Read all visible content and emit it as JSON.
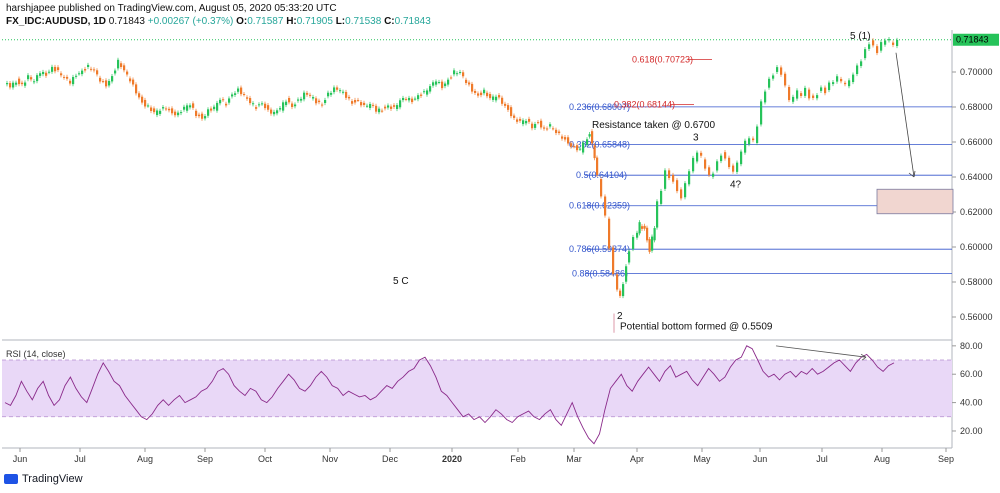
{
  "header": {
    "publisher": "harshjapee published on TradingView.com, August 05, 2020 05:33:20 UTC",
    "symbol": "FX_IDC:AUDUSD, 1D",
    "last": "0.71843",
    "change": "+0.00267 (+0.37%)",
    "open_label": "O:",
    "open": "0.71587",
    "high_label": "H:",
    "high": "0.71905",
    "low_label": "L:",
    "low": "0.71538",
    "close_label": "C:",
    "close": "0.71843"
  },
  "footer": {
    "brand": "TradingView"
  },
  "colors": {
    "up": "#26c35a",
    "down": "#ef7a2a",
    "fib": "#3355cc",
    "fib_red": "#d42a2a",
    "rsi": "#8a2a8a",
    "rsi_band": "#e9d8f7",
    "price_line": "#26c35a"
  },
  "chart_data": [
    {
      "type": "candlestick",
      "title": "",
      "yticks": [
        "0.56000",
        "0.58000",
        "0.60000",
        "0.62000",
        "0.64000",
        "0.66000",
        "0.68000",
        "0.70000"
      ],
      "ylim": [
        0.548,
        0.724
      ],
      "last_price_label": "0.71843",
      "xticks": [
        "Jun",
        "Jul",
        "Aug",
        "Sep",
        "Oct",
        "Nov",
        "Dec",
        "2020",
        "Feb",
        "Mar",
        "Apr",
        "May",
        "Jun",
        "Jul",
        "Aug",
        "Sep"
      ],
      "close_path": [
        [
          0,
          0.693
        ],
        [
          6,
          0.692
        ],
        [
          12,
          0.695
        ],
        [
          18,
          0.693
        ],
        [
          24,
          0.697
        ],
        [
          30,
          0.694
        ],
        [
          36,
          0.7
        ],
        [
          42,
          0.699
        ],
        [
          48,
          0.703
        ],
        [
          54,
          0.7
        ],
        [
          60,
          0.696
        ],
        [
          66,
          0.694
        ],
        [
          72,
          0.699
        ],
        [
          78,
          0.701
        ],
        [
          84,
          0.703
        ],
        [
          90,
          0.7
        ],
        [
          96,
          0.695
        ],
        [
          102,
          0.693
        ],
        [
          108,
          0.698
        ],
        [
          114,
          0.706
        ],
        [
          120,
          0.7
        ],
        [
          126,
          0.695
        ],
        [
          132,
          0.689
        ],
        [
          138,
          0.683
        ],
        [
          144,
          0.68
        ],
        [
          150,
          0.676
        ],
        [
          156,
          0.678
        ],
        [
          162,
          0.68
        ],
        [
          168,
          0.677
        ],
        [
          174,
          0.676
        ],
        [
          180,
          0.679
        ],
        [
          186,
          0.681
        ],
        [
          192,
          0.676
        ],
        [
          198,
          0.674
        ],
        [
          204,
          0.678
        ],
        [
          210,
          0.679
        ],
        [
          216,
          0.684
        ],
        [
          222,
          0.682
        ],
        [
          228,
          0.688
        ],
        [
          234,
          0.69
        ],
        [
          240,
          0.686
        ],
        [
          246,
          0.682
        ],
        [
          252,
          0.68
        ],
        [
          258,
          0.683
        ],
        [
          264,
          0.678
        ],
        [
          270,
          0.676
        ],
        [
          276,
          0.679
        ],
        [
          282,
          0.684
        ],
        [
          288,
          0.681
        ],
        [
          294,
          0.684
        ],
        [
          300,
          0.687
        ],
        [
          306,
          0.686
        ],
        [
          312,
          0.683
        ],
        [
          318,
          0.682
        ],
        [
          324,
          0.688
        ],
        [
          330,
          0.69
        ],
        [
          336,
          0.689
        ],
        [
          342,
          0.686
        ],
        [
          348,
          0.683
        ],
        [
          354,
          0.684
        ],
        [
          360,
          0.68
        ],
        [
          366,
          0.681
        ],
        [
          372,
          0.678
        ],
        [
          378,
          0.679
        ],
        [
          384,
          0.681
        ],
        [
          390,
          0.679
        ],
        [
          396,
          0.683
        ],
        [
          402,
          0.685
        ],
        [
          408,
          0.684
        ],
        [
          414,
          0.687
        ],
        [
          420,
          0.688
        ],
        [
          426,
          0.691
        ],
        [
          432,
          0.695
        ],
        [
          438,
          0.692
        ],
        [
          444,
          0.696
        ],
        [
          450,
          0.7
        ],
        [
          456,
          0.699
        ],
        [
          462,
          0.694
        ],
        [
          468,
          0.69
        ],
        [
          474,
          0.687
        ],
        [
          480,
          0.689
        ],
        [
          486,
          0.684
        ],
        [
          492,
          0.686
        ],
        [
          498,
          0.683
        ],
        [
          504,
          0.679
        ],
        [
          510,
          0.673
        ],
        [
          516,
          0.671
        ],
        [
          522,
          0.672
        ],
        [
          528,
          0.669
        ],
        [
          534,
          0.672
        ],
        [
          540,
          0.667
        ],
        [
          546,
          0.669
        ],
        [
          552,
          0.665
        ],
        [
          558,
          0.663
        ],
        [
          564,
          0.66
        ],
        [
          570,
          0.657
        ],
        [
          576,
          0.655
        ],
        [
          580,
          0.659
        ],
        [
          585,
          0.665
        ],
        [
          590,
          0.652
        ],
        [
          594,
          0.64
        ],
        [
          598,
          0.63
        ],
        [
          602,
          0.617
        ],
        [
          606,
          0.6
        ],
        [
          610,
          0.584
        ],
        [
          613,
          0.576
        ],
        [
          616,
          0.573
        ],
        [
          619,
          0.58
        ],
        [
          622,
          0.59
        ],
        [
          626,
          0.598
        ],
        [
          630,
          0.605
        ],
        [
          635,
          0.613
        ],
        [
          640,
          0.61
        ],
        [
          645,
          0.598
        ],
        [
          650,
          0.612
        ],
        [
          654,
          0.625
        ],
        [
          658,
          0.633
        ],
        [
          662,
          0.643
        ],
        [
          666,
          0.64
        ],
        [
          670,
          0.637
        ],
        [
          674,
          0.632
        ],
        [
          678,
          0.628
        ],
        [
          682,
          0.636
        ],
        [
          686,
          0.644
        ],
        [
          690,
          0.65
        ],
        [
          694,
          0.655
        ],
        [
          698,
          0.651
        ],
        [
          702,
          0.646
        ],
        [
          706,
          0.64
        ],
        [
          710,
          0.643
        ],
        [
          714,
          0.648
        ],
        [
          718,
          0.653
        ],
        [
          722,
          0.65
        ],
        [
          726,
          0.646
        ],
        [
          730,
          0.643
        ],
        [
          734,
          0.648
        ],
        [
          738,
          0.655
        ],
        [
          742,
          0.66
        ],
        [
          746,
          0.663
        ],
        [
          750,
          0.66
        ],
        [
          754,
          0.67
        ],
        [
          758,
          0.682
        ],
        [
          762,
          0.69
        ],
        [
          766,
          0.695
        ],
        [
          770,
          0.699
        ],
        [
          774,
          0.702
        ],
        [
          778,
          0.699
        ],
        [
          782,
          0.692
        ],
        [
          786,
          0.684
        ],
        [
          790,
          0.686
        ],
        [
          794,
          0.689
        ],
        [
          798,
          0.687
        ],
        [
          802,
          0.69
        ],
        [
          806,
          0.686
        ],
        [
          810,
          0.684
        ],
        [
          814,
          0.688
        ],
        [
          818,
          0.69
        ],
        [
          822,
          0.689
        ],
        [
          826,
          0.693
        ],
        [
          830,
          0.695
        ],
        [
          834,
          0.697
        ],
        [
          838,
          0.695
        ],
        [
          842,
          0.693
        ],
        [
          846,
          0.695
        ],
        [
          850,
          0.699
        ],
        [
          854,
          0.703
        ],
        [
          858,
          0.707
        ],
        [
          862,
          0.712
        ],
        [
          866,
          0.717
        ],
        [
          870,
          0.714
        ],
        [
          874,
          0.712
        ],
        [
          878,
          0.716
        ],
        [
          882,
          0.719
        ],
        [
          886,
          0.718
        ],
        [
          890,
          0.716
        ],
        [
          894,
          0.718
        ]
      ],
      "fib_levels": [
        {
          "label": "0.236(0.68007)",
          "value": 0.68007,
          "x_label": 569,
          "color": "fib"
        },
        {
          "label": "0.382(0.65848)",
          "value": 0.65848,
          "x_label": 569,
          "color": "fib"
        },
        {
          "label": "0.5(0.64104)",
          "value": 0.64104,
          "x_label": 576,
          "color": "fib"
        },
        {
          "label": "0.618(0.62359)",
          "value": 0.62359,
          "x_label": 569,
          "color": "fib"
        },
        {
          "label": "0.786(0.59874)",
          "value": 0.59874,
          "x_label": 569,
          "color": "fib"
        },
        {
          "label": "0.88(0.58486)",
          "value": 0.58486,
          "x_label": 572,
          "color": "fib"
        }
      ],
      "fib_levels_red": [
        {
          "label": "0.618(0.70723)",
          "value": 0.70723
        },
        {
          "label": "0.382(0.68144)",
          "value": 0.68144
        }
      ],
      "annotations": [
        {
          "text": "5 (1)",
          "x": 850,
          "y": 0.719
        },
        {
          "text": "Resistance taken @ 0.6700",
          "x": 592,
          "y": 0.668
        },
        {
          "text": "3",
          "x": 693,
          "y": 0.661
        },
        {
          "text": "4?",
          "x": 730,
          "y": 0.634
        },
        {
          "text": "5 C",
          "x": 393,
          "y": 0.579
        },
        {
          "text": "2",
          "x": 617,
          "y": 0.559
        },
        {
          "text": "Potential bottom formed @ 0.5509",
          "x": 620,
          "y": 0.553
        }
      ],
      "target_zone": {
        "y_top": 0.633,
        "y_bottom": 0.619
      },
      "arrow": {
        "from_y": 0.711,
        "to_y": 0.64
      }
    },
    {
      "type": "line",
      "title": "RSI (14, close)",
      "yticks": [
        "20.00",
        "40.00",
        "60.00",
        "80.00"
      ],
      "ylim": [
        8,
        82
      ],
      "band": [
        30,
        70
      ],
      "values": [
        40,
        38,
        45,
        55,
        48,
        42,
        50,
        55,
        45,
        38,
        42,
        52,
        58,
        50,
        44,
        40,
        50,
        60,
        68,
        62,
        55,
        52,
        45,
        40,
        35,
        30,
        28,
        32,
        38,
        42,
        38,
        42,
        45,
        40,
        42,
        44,
        48,
        50,
        55,
        62,
        64,
        60,
        52,
        48,
        45,
        50,
        48,
        42,
        40,
        44,
        50,
        55,
        60,
        56,
        50,
        48,
        52,
        58,
        62,
        58,
        52,
        50,
        45,
        48,
        46,
        44,
        45,
        42,
        44,
        48,
        52,
        50,
        55,
        58,
        62,
        64,
        70,
        72,
        66,
        58,
        48,
        45,
        40,
        35,
        30,
        32,
        28,
        30,
        26,
        30,
        35,
        32,
        28,
        26,
        30,
        32,
        34,
        30,
        28,
        32,
        35,
        28,
        24,
        32,
        40,
        30,
        22,
        15,
        11,
        18,
        35,
        50,
        55,
        60,
        52,
        48,
        55,
        60,
        65,
        60,
        55,
        62,
        66,
        58,
        60,
        62,
        56,
        52,
        58,
        64,
        60,
        55,
        58,
        65,
        70,
        72,
        80,
        78,
        70,
        62,
        58,
        60,
        56,
        60,
        62,
        58,
        62,
        60,
        64,
        60,
        62,
        65,
        68,
        70,
        66,
        62,
        68,
        72,
        74,
        70,
        65,
        62,
        66,
        68
      ]
    }
  ]
}
